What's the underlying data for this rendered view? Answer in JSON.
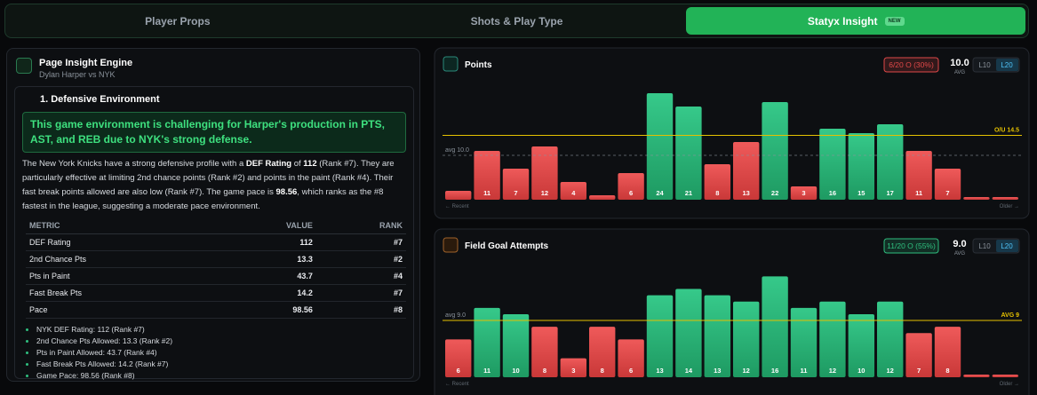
{
  "tabs": [
    {
      "label": "Player Props"
    },
    {
      "label": "Shots & Play Type"
    },
    {
      "label": "Statyx Insight",
      "badge": "NEW"
    }
  ],
  "insight": {
    "title": "Page Insight Engine",
    "subtitle": "Dylan Harper vs NYK",
    "section": "1. Defensive Environment",
    "highlight": "This game environment is challenging for Harper's production in PTS, AST, and REB due to NYK's strong defense.",
    "paragraph": [
      {
        "text": "The New York Knicks have a strong defensive profile with a "
      },
      {
        "text": "DEF Rating",
        "bold": true
      },
      {
        "text": " of "
      },
      {
        "text": "112",
        "bold": true
      },
      {
        "text": " (Rank #7). They are particularly effective at limiting 2nd chance points (Rank #2) and points in the paint (Rank #4). Their fast break points allowed are also low (Rank #7). The game pace is "
      },
      {
        "text": "98.56",
        "bold": true
      },
      {
        "text": ", which ranks as the #8 fastest in the league, suggesting a moderate pace environment."
      }
    ],
    "table": {
      "header": [
        "METRIC",
        "VALUE",
        "RANK"
      ],
      "rows": [
        [
          "DEF Rating",
          "112",
          "#7"
        ],
        [
          "2nd Chance Pts",
          "13.3",
          "#2"
        ],
        [
          "Pts in Paint",
          "43.7",
          "#4"
        ],
        [
          "Fast Break Pts",
          "14.2",
          "#7"
        ],
        [
          "Pace",
          "98.56",
          "#8"
        ]
      ]
    },
    "bullets": [
      "NYK DEF Rating: 112 (Rank #7)",
      "2nd Chance Pts Allowed: 13.3 (Rank #2)",
      "Pts in Paint Allowed: 43.7 (Rank #4)",
      "Fast Break Pts Allowed: 14.2 (Rank #7)",
      "Game Pace: 98.56 (Rank #8)"
    ]
  },
  "charts": [
    {
      "type": "bar",
      "title": "Points",
      "badge": "6/20 O (30%)",
      "badge_color": "#e04848",
      "average": {
        "value": 10,
        "label": "10.0"
      },
      "avg_caption": "AVG",
      "avg_line_label": "avg 10.0",
      "toggles": [
        "L10",
        "L20"
      ],
      "threshold": {
        "value": 14.5,
        "label": "O/U 14.5"
      },
      "ylim": [
        0,
        29
      ],
      "values": [
        2,
        11,
        7,
        12,
        4,
        1,
        6,
        24,
        21,
        8,
        13,
        22,
        3,
        16,
        15,
        17,
        11,
        7,
        0,
        0
      ],
      "recent": "← Recent",
      "older": "Older →"
    },
    {
      "type": "bar",
      "title": "Field Goal Attempts",
      "badge": "11/20 O (55%)",
      "badge_color": "#2fbf7f",
      "average": {
        "value": 9,
        "label": "9.0"
      },
      "avg_caption": "AVG",
      "avg_line_label": "avg 9.0",
      "toggles": [
        "L10",
        "L20"
      ],
      "threshold": {
        "value": 9,
        "label": "AVG 9"
      },
      "ylim": [
        0,
        19
      ],
      "values": [
        6,
        11,
        10,
        8,
        3,
        8,
        6,
        13,
        14,
        13,
        12,
        16,
        11,
        12,
        10,
        12,
        7,
        8,
        0,
        0
      ],
      "recent": "← Recent",
      "older": "Older →"
    }
  ]
}
